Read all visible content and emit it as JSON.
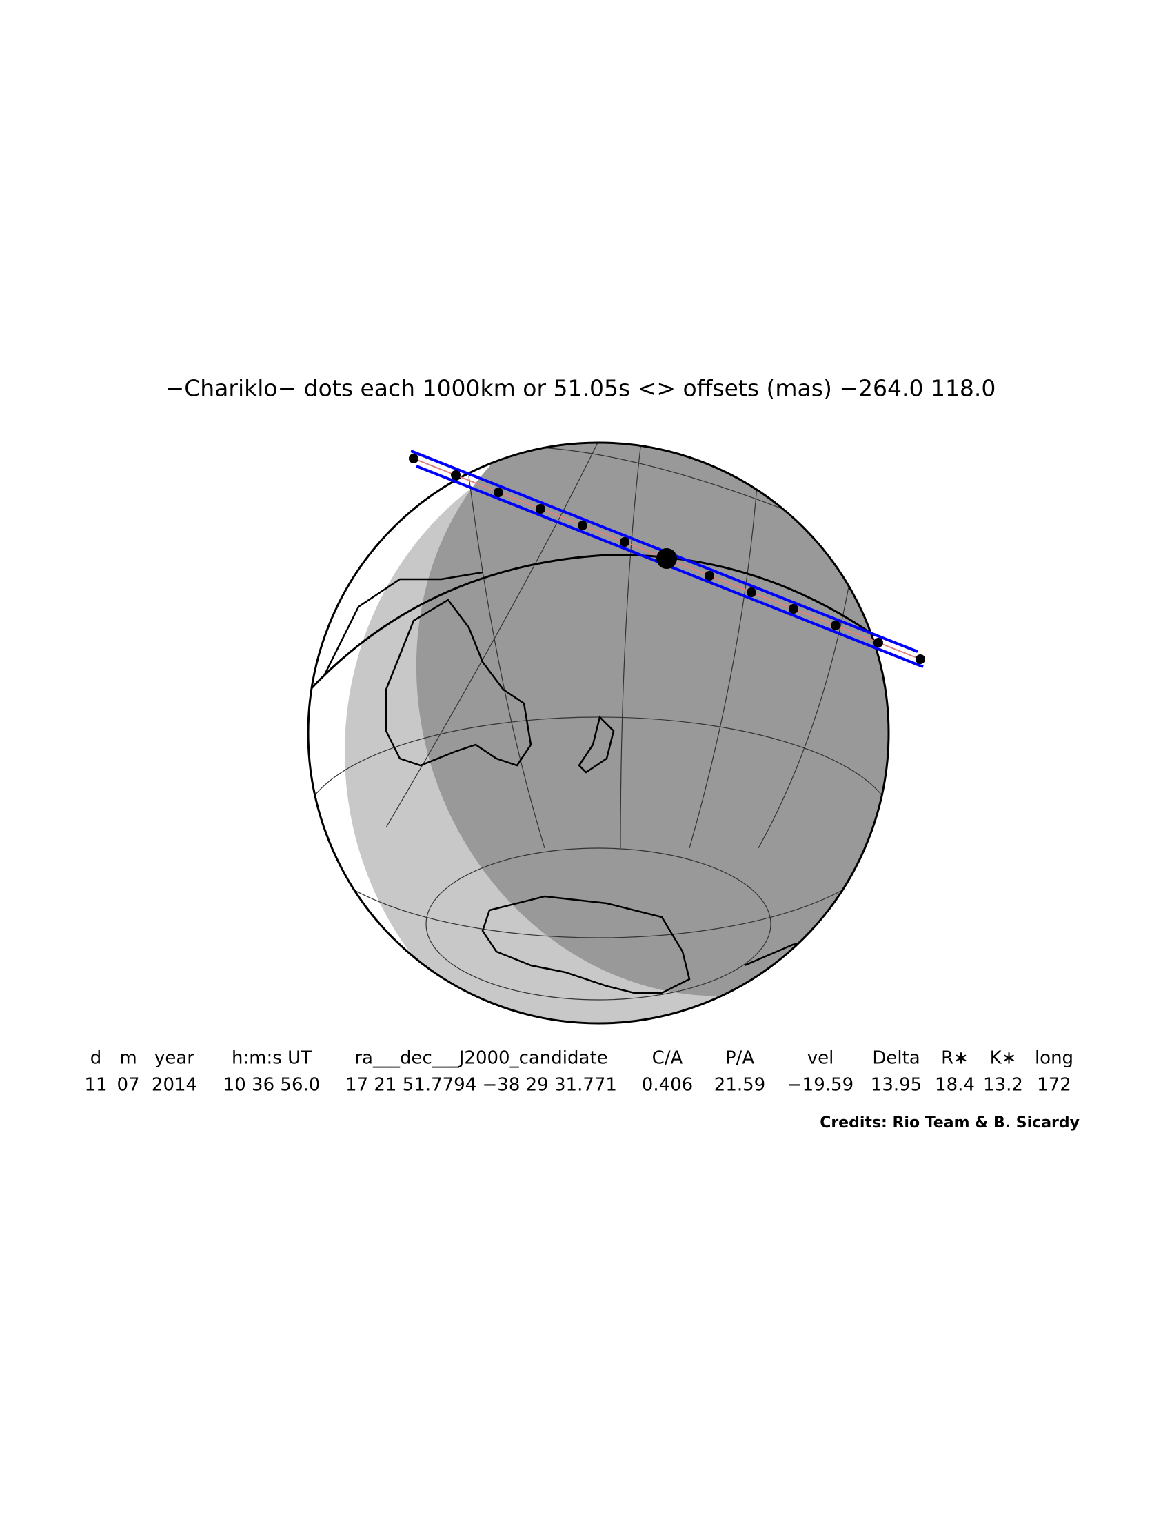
{
  "title": "−Chariklo− dots each 1000km or 51.05s <> offsets (mas) −264.0  118.0",
  "table": {
    "header": [
      "d",
      "m",
      "year",
      "h:m:s UT",
      "ra___dec___J2000_candidate",
      "C/A",
      "P/A",
      "vel",
      "Delta",
      "R∗",
      "K∗",
      "long"
    ],
    "row": [
      "11",
      "07",
      "2014",
      "10 36 56.0",
      "17 21 51.7794 −38 29 31.771",
      "0.406",
      "21.59",
      "−19.59",
      "13.95",
      "18.4",
      "13.2",
      "172"
    ]
  },
  "credits": "Credits: Rio Team & B. Sicardy"
}
